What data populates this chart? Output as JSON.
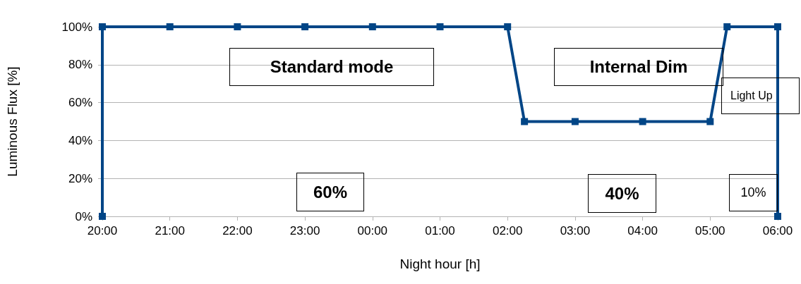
{
  "chart_data": {
    "type": "line",
    "xlabel": "Night hour [h]",
    "ylabel": "Luminous Flux [%]",
    "series": [
      {
        "color": "#004586",
        "x": [
          "--01-01T20:00",
          "--01-01T20:00",
          "--01-01T21:00",
          "--01-01T22:00",
          "--01-01T23:00",
          "--01-02T00:00",
          "--01-02T01:00",
          "--01-02T02:00",
          "--01-02T02:15",
          "--01-02T03:00",
          "--01-02T04:00",
          "--01-02T05:00",
          "--01-02T05:15",
          "--01-02T06:00",
          "--01-02T06:00"
        ],
        "values": [
          0,
          100,
          100,
          100,
          100,
          100,
          100,
          100,
          50,
          50,
          50,
          50,
          100,
          100,
          0
        ]
      }
    ],
    "xlim": [
      "--01-01T20:00",
      "--01-02T06:00"
    ],
    "xticks": [
      {
        "value": "--01-01T20:00",
        "label": "20:00"
      },
      {
        "value": "--01-01T21:00",
        "label": "21:00"
      },
      {
        "value": "--01-01T22:00",
        "label": "22:00"
      },
      {
        "value": "--01-01T23:00",
        "label": "23:00"
      },
      {
        "value": "--01-02T00:00",
        "label": "00:00"
      },
      {
        "value": "--01-02T01:00",
        "label": "01:00"
      },
      {
        "value": "--01-02T02:00",
        "label": "02:00"
      },
      {
        "value": "--01-02T03:00",
        "label": "03:00"
      },
      {
        "value": "--01-02T04:00",
        "label": "04:00"
      },
      {
        "value": "--01-02T05:00",
        "label": "05:00"
      },
      {
        "value": "--01-02T06:00",
        "label": "06:00"
      }
    ],
    "ylim": [
      0,
      100
    ],
    "yticks": [
      {
        "value": 0,
        "label": "0%"
      },
      {
        "value": 20,
        "label": "20%"
      },
      {
        "value": 40,
        "label": "40%"
      },
      {
        "value": 60,
        "label": "60%"
      },
      {
        "value": 80,
        "label": "80%"
      },
      {
        "value": 100,
        "label": "100%"
      }
    ],
    "grid": "y",
    "marker": "square",
    "line_style": "solid",
    "annotations": [
      "Standard mode",
      "Internal Dim",
      "Light Up",
      "60%",
      "40%",
      "10%"
    ]
  }
}
